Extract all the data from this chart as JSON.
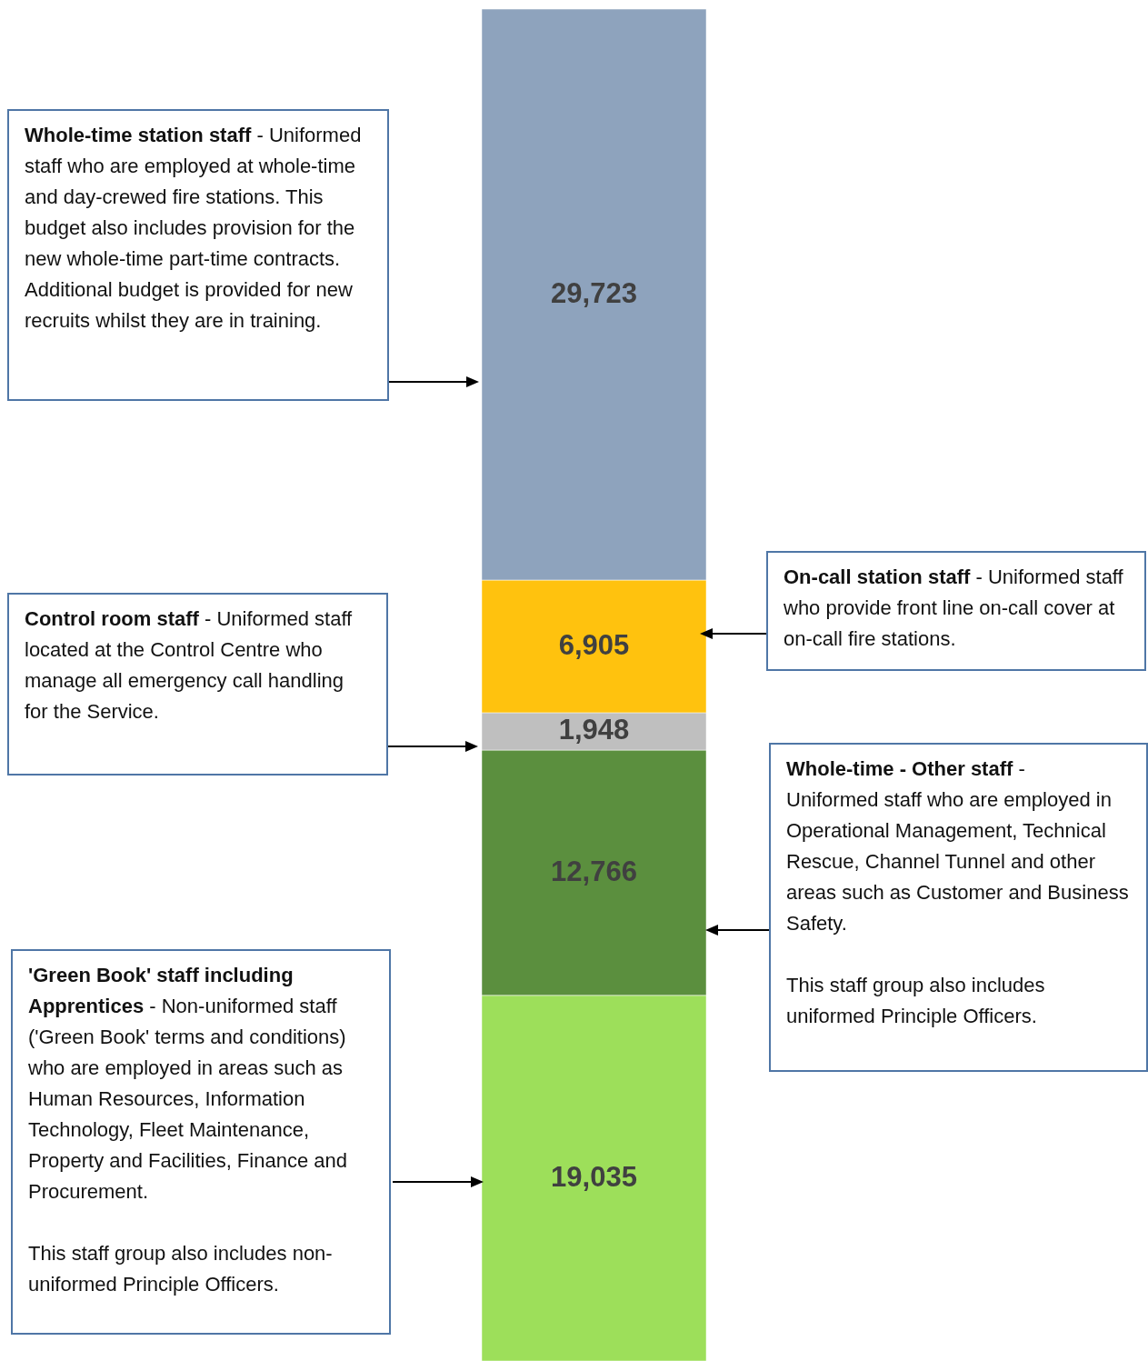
{
  "chart_data": {
    "type": "bar",
    "stacked": true,
    "categories": [
      null
    ],
    "series": [
      {
        "color": "#9ddf5a",
        "values": [
          19035
        ],
        "value_labels": [
          "19,035"
        ]
      },
      {
        "color": "#5b8f3e",
        "values": [
          12766
        ],
        "value_labels": [
          "12,766"
        ]
      },
      {
        "color": "#bfbfbf",
        "values": [
          1948
        ],
        "value_labels": [
          "1,948"
        ]
      },
      {
        "color": "#ffc20e",
        "values": [
          6905
        ],
        "value_labels": [
          "6,905"
        ]
      },
      {
        "color": "#8ea3bd",
        "values": [
          29723
        ],
        "value_labels": [
          "29,723"
        ]
      }
    ],
    "annotations": [
      "'Green Book' staff including Apprentices",
      "- Non-uniformed staff ('Green Book' terms and conditions) who are employed in areas such as Human Resources, Information Technology, Fleet Maintenance, Property and Facilities, Finance and Procurement.\n\nThis staff group also includes non-uniformed Principle Officers.",
      "Whole-time - Other staff",
      "-\nUniformed staff who are employed in Operational Management, Technical Rescue, Channel Tunnel and other areas such as Customer and Business Safety.\n\nThis staff group also includes uniformed Principle Officers.",
      "Control room staff",
      "- Uniformed staff located at the Control Centre who manage all emergency call handling for the Service.",
      "On-call station staff",
      "- Uniformed staff who provide front line on-call cover at on-call fire stations.",
      "Whole-time station staff",
      "- Uniformed staff who are employed at whole-time and day-crewed fire stations.  This budget also includes provision for the new whole-time part-time contracts.  Additional budget is provided for new recruits whilst they are in training."
    ]
  }
}
